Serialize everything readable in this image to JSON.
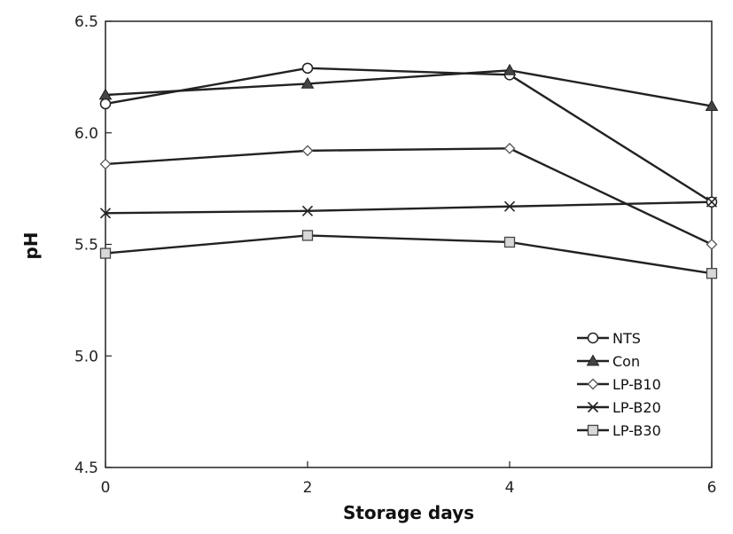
{
  "chart_data": {
    "type": "line",
    "title": "",
    "xlabel": "Storage days",
    "ylabel": "pH",
    "x": [
      0,
      2,
      4,
      6
    ],
    "xticks": [
      "0",
      "2",
      "4",
      "6"
    ],
    "yticks": [
      "4.5",
      "5.0",
      "5.5",
      "6.0",
      "6.5"
    ],
    "xlim": [
      0,
      6
    ],
    "ylim": [
      4.5,
      6.5
    ],
    "grid": false,
    "legend_position": "bottom-right",
    "series": [
      {
        "name": "NTS",
        "marker": "circle",
        "values": [
          6.13,
          6.29,
          6.26,
          5.69
        ]
      },
      {
        "name": "Con",
        "marker": "triangle",
        "values": [
          6.17,
          6.22,
          6.28,
          6.12
        ]
      },
      {
        "name": "LP-B10",
        "marker": "diamond",
        "values": [
          5.86,
          5.92,
          5.93,
          5.5
        ]
      },
      {
        "name": "LP-B20",
        "marker": "x",
        "values": [
          5.64,
          5.65,
          5.67,
          5.69
        ]
      },
      {
        "name": "LP-B30",
        "marker": "square",
        "values": [
          5.46,
          5.54,
          5.51,
          5.37
        ]
      }
    ]
  }
}
